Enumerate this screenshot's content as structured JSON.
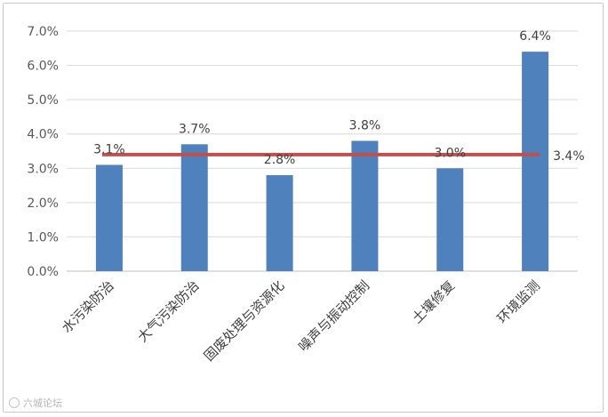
{
  "chart_data": {
    "type": "bar",
    "categories": [
      "水污染防治",
      "大气污染防治",
      "固废处理与资源化",
      "噪声与振动控制",
      "土壤修复",
      "环境监测"
    ],
    "values": [
      3.1,
      3.7,
      2.8,
      3.8,
      3.0,
      6.4
    ],
    "value_labels": [
      "3.1%",
      "3.7%",
      "2.8%",
      "3.8%",
      "3.0%",
      "6.4%"
    ],
    "reference_line": {
      "value": 3.4,
      "label": "3.4%",
      "color": "#c0504d"
    },
    "ylim": [
      0,
      7
    ],
    "yticks": [
      "0.0%",
      "1.0%",
      "2.0%",
      "3.0%",
      "4.0%",
      "5.0%",
      "6.0%",
      "7.0%"
    ],
    "bar_color": "#4f81bd",
    "grid": true,
    "title": "",
    "xlabel": "",
    "ylabel": ""
  },
  "watermark": {
    "text": "六城论坛"
  }
}
